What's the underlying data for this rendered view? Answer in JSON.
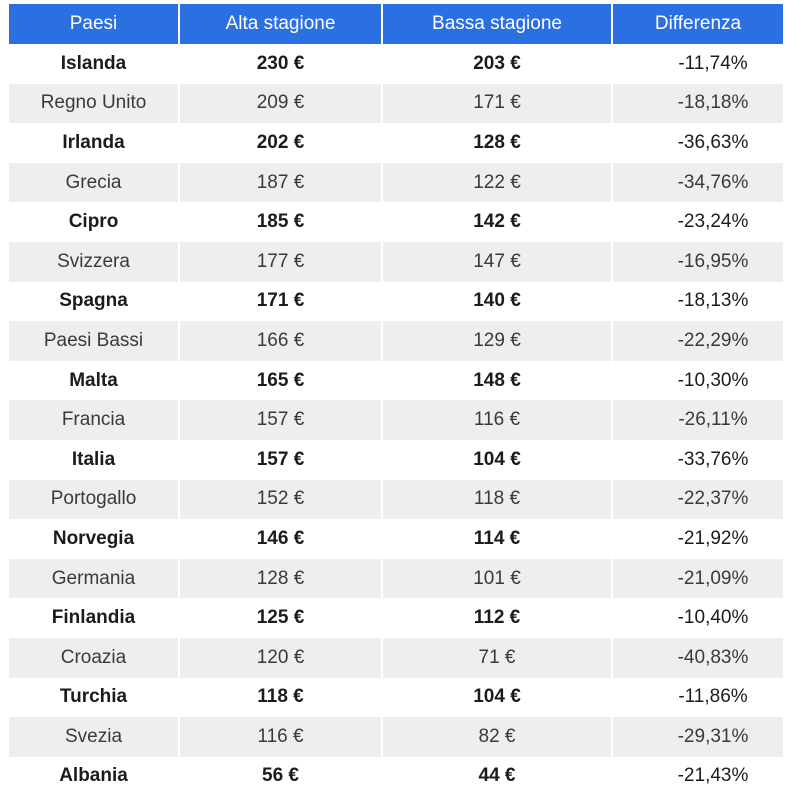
{
  "table": {
    "headers": [
      "Paesi",
      "Alta stagione",
      "Bassa stagione",
      "Differenza"
    ],
    "rows": [
      [
        "Islanda",
        "230 €",
        "203 €",
        "-11,74%"
      ],
      [
        "Regno Unito",
        "209 €",
        "171 €",
        "-18,18%"
      ],
      [
        "Irlanda",
        "202 €",
        "128 €",
        "-36,63%"
      ],
      [
        "Grecia",
        "187 €",
        "122 €",
        "-34,76%"
      ],
      [
        "Cipro",
        "185 €",
        "142 €",
        "-23,24%"
      ],
      [
        "Svizzera",
        "177 €",
        "147 €",
        "-16,95%"
      ],
      [
        "Spagna",
        "171 €",
        "140 €",
        "-18,13%"
      ],
      [
        "Paesi Bassi",
        "166 €",
        "129 €",
        "-22,29%"
      ],
      [
        "Malta",
        "165 €",
        "148 €",
        "-10,30%"
      ],
      [
        "Francia",
        "157 €",
        "116 €",
        "-26,11%"
      ],
      [
        "Italia",
        "157 €",
        "104 €",
        "-33,76%"
      ],
      [
        "Portogallo",
        "152 €",
        "118 €",
        "-22,37%"
      ],
      [
        "Norvegia",
        "146 €",
        "114 €",
        "-21,92%"
      ],
      [
        "Germania",
        "128 €",
        "101 €",
        "-21,09%"
      ],
      [
        "Finlandia",
        "125 €",
        "112 €",
        "-10,40%"
      ],
      [
        "Croazia",
        "120 €",
        "71 €",
        "-40,83%"
      ],
      [
        "Turchia",
        "118 €",
        "104 €",
        "-11,86%"
      ],
      [
        "Svezia",
        "116 €",
        "82 €",
        "-29,31%"
      ],
      [
        "Albania",
        "56 €",
        "44 €",
        "-21,43%"
      ]
    ]
  },
  "colors": {
    "header_bg": "#2c6fe0",
    "header_text": "#ffffff",
    "row_alt_bg": "#eeeeee",
    "row_bg": "#ffffff"
  }
}
